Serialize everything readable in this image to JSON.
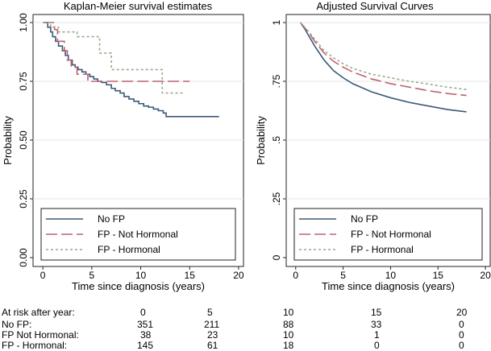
{
  "chart_data": [
    {
      "type": "line",
      "title": "Kaplan-Meier survival estimates",
      "xlabel": "Time since diagnosis (years)",
      "ylabel": "Probability",
      "xlim": [
        -1,
        20.5
      ],
      "ylim": [
        0,
        1
      ],
      "xticks": [
        "0",
        "5",
        "10",
        "15",
        "20"
      ],
      "yticks": [
        "0.00",
        "0.25",
        "0.50",
        "0.75",
        "1.00"
      ],
      "step": true,
      "legend": [
        "No FP",
        "FP - Not Hormonal",
        "FP - Hormonal"
      ],
      "series": [
        {
          "name": "No FP",
          "color": "#3a5a78",
          "x": [
            0,
            0.5,
            0.8,
            1.0,
            1.3,
            1.6,
            2.0,
            2.3,
            2.6,
            3.0,
            3.3,
            3.6,
            4.0,
            4.4,
            4.8,
            5.2,
            5.6,
            6.0,
            6.5,
            7.0,
            7.4,
            7.9,
            8.3,
            8.8,
            9.3,
            9.8,
            10.3,
            10.8,
            11.3,
            11.8,
            12.3,
            12.6,
            18
          ],
          "y": [
            1.0,
            0.98,
            0.96,
            0.94,
            0.92,
            0.9,
            0.88,
            0.86,
            0.84,
            0.82,
            0.81,
            0.8,
            0.79,
            0.78,
            0.77,
            0.76,
            0.75,
            0.745,
            0.735,
            0.72,
            0.71,
            0.7,
            0.685,
            0.675,
            0.665,
            0.655,
            0.645,
            0.64,
            0.632,
            0.625,
            0.615,
            0.6,
            0.6
          ]
        },
        {
          "name": "FP - Not Hormonal",
          "color": "#c06070",
          "x": [
            0,
            1.2,
            1.5,
            2.2,
            2.5,
            2.9,
            3.5,
            4.6,
            15
          ],
          "y": [
            1.0,
            0.97,
            0.92,
            0.88,
            0.84,
            0.81,
            0.78,
            0.75,
            0.75
          ]
        },
        {
          "name": "FP - Hormonal",
          "color": "#9aa98a",
          "x": [
            0,
            0.8,
            1.6,
            3.5,
            5.8,
            7.0,
            12.2,
            14.3
          ],
          "y": [
            1.0,
            0.98,
            0.96,
            0.94,
            0.87,
            0.8,
            0.7,
            0.7
          ]
        }
      ]
    },
    {
      "type": "line",
      "title": "Adjusted Survival Curves",
      "xlabel": "Time since diagnosis (years)",
      "ylabel": "Probability",
      "xlim": [
        -1,
        20.5
      ],
      "ylim": [
        0,
        1
      ],
      "xticks": [
        "0",
        "5",
        "10",
        "15",
        "20"
      ],
      "yticks": [
        "0",
        ".25",
        ".5",
        ".75",
        "1"
      ],
      "step": false,
      "legend": [
        "No FP",
        "FP - Not Hormonal",
        "FP - Hormonal"
      ],
      "series": [
        {
          "name": "No FP",
          "color": "#3a5a78",
          "x": [
            0.5,
            1,
            1.5,
            2,
            3,
            4,
            5,
            6,
            8,
            10,
            12,
            14,
            16,
            18
          ],
          "y": [
            1.0,
            0.97,
            0.935,
            0.9,
            0.84,
            0.795,
            0.765,
            0.74,
            0.705,
            0.68,
            0.66,
            0.645,
            0.63,
            0.62
          ]
        },
        {
          "name": "FP - Not Hormonal",
          "color": "#c06070",
          "x": [
            0.5,
            1,
            1.5,
            2,
            3,
            4,
            5,
            6,
            8,
            10,
            12,
            14,
            16,
            18
          ],
          "y": [
            1.0,
            0.975,
            0.95,
            0.92,
            0.87,
            0.835,
            0.81,
            0.79,
            0.76,
            0.74,
            0.725,
            0.71,
            0.698,
            0.69
          ]
        },
        {
          "name": "FP - Hormonal",
          "color": "#9aa98a",
          "x": [
            0.5,
            1,
            1.5,
            2,
            3,
            4,
            5,
            6,
            8,
            10,
            12,
            14,
            16,
            18
          ],
          "y": [
            1.0,
            0.978,
            0.955,
            0.93,
            0.88,
            0.85,
            0.825,
            0.805,
            0.78,
            0.765,
            0.75,
            0.738,
            0.725,
            0.715
          ]
        }
      ]
    }
  ],
  "risk_table": {
    "header": {
      "label": "At risk after year:",
      "values": [
        "0",
        "5",
        "10",
        "15",
        "20"
      ]
    },
    "rows": [
      {
        "label": "No FP:",
        "values": [
          "351",
          "211",
          "88",
          "33",
          "0"
        ]
      },
      {
        "label": "FP Not Hormonal:",
        "values": [
          "38",
          "23",
          "10",
          "1",
          "0"
        ]
      },
      {
        "label": "FP - Hormonal:",
        "values": [
          "145",
          "61",
          "18",
          "0",
          "0"
        ]
      }
    ]
  }
}
